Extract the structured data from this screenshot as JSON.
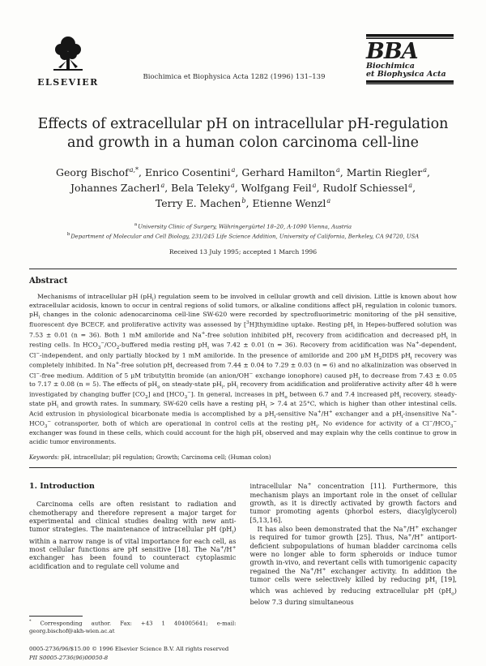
{
  "header": {
    "publisher_name": "ELSEVIER",
    "journal_ref": "Biochimica et Biophysica Acta 1282 (1996) 131–139",
    "bba": {
      "acronym": "BBA",
      "name_line1": "Biochimica",
      "name_line2": "et Biophysica Acta"
    }
  },
  "article": {
    "title": "Effects of extracellular pH on intracellular pH-regulation and growth in a human colon carcinoma cell-line",
    "authors": [
      {
        "name": "Georg Bischof",
        "sup": "a,*"
      },
      {
        "name": "Enrico Cosentini",
        "sup": "a"
      },
      {
        "name": "Gerhard Hamilton",
        "sup": "a"
      },
      {
        "name": "Martin Riegler",
        "sup": "a"
      },
      {
        "name": "Johannes Zacherl",
        "sup": "a"
      },
      {
        "name": "Bela Teleky",
        "sup": "a"
      },
      {
        "name": "Wolfgang Feil",
        "sup": "a"
      },
      {
        "name": "Rudolf Schiessel",
        "sup": "a"
      },
      {
        "name": "Terry E. Machen",
        "sup": "b"
      },
      {
        "name": "Etienne Wenzl",
        "sup": "a"
      }
    ],
    "affiliations": [
      {
        "sup": "a",
        "text": "University Clinic of Surgery, Währingergürtel 18–20, A-1090 Vienna, Austria"
      },
      {
        "sup": "b",
        "text": "Department of Molecular and Cell Biology, 231/245 Life Science Addition, University of California, Berkeley, CA 94720, USA"
      }
    ],
    "received": "Received 13 July 1995; accepted 1 March 1996"
  },
  "abstract": {
    "heading": "Abstract",
    "text_html": "Mechanisms of intracellular pH (pH<sub>i</sub>) regulation seem to be involved in cellular growth and cell division. Little is known about how extracellular acidosis, known to occur in central regions of solid tumors, or alkaline conditions affect pH<sub>i</sub> regulation in colonic tumors. pH<sub>i</sub> changes in the colonic adenocarcinoma cell-line SW-620 were recorded by spectrofluorimetric monitoring of the pH sensitive, fluorescent dye BCECF, and proliferative activity was assessed by [<sup>3</sup>H]thymidine uptake. Resting pH<sub>i</sub> in Hepes-buffered solution was 7.53 ± 0.01 (n = 36). Both 1 mM amiloride and Na<sup>+</sup>-free solution inhibited pH<sub>i</sub> recovery from acidification and decreased pH<sub>i</sub> in resting cells. In HCO<sub>3</sub><sup>−</sup>/CO<sub>2</sub>-buffered media resting pH<sub>i</sub> was 7.42 ± 0.01 (n = 36). Recovery from acidification was Na<sup>+</sup>-dependent, Cl<sup>−</sup>-independent, and only partially blocked by 1 mM amiloride. In the presence of amiloride and 200 μM H<sub>2</sub>DIDS pH<sub>i</sub> recovery was completely inhibited. In Na<sup>+</sup>-free solution pH<sub>i</sub> decreased from 7.44 ± 0.04 to 7.29 ± 0.03 (n = 6) and no alkalinization was observed in Cl<sup>−</sup>-free medium. Addition of 5 μM tributyltin bromide (an anion/OH<sup>−</sup> exchange ionophore) caused pH<sub>i</sub> to decrease from 7.43 ± 0.05 to 7.17 ± 0.08 (n = 5). The effects of pH<sub>o</sub> on steady-state pH<sub>i</sub>, pH<sub>i</sub> recovery from acidification and proliferative activity after 48 h were investigated by changing buffer [CO<sub>2</sub>] and [HCO<sub>3</sub><sup>−</sup>]. In general, increases in pH<sub>o</sub> between 6.7 and 7.4 increased pH<sub>i</sub> recovery, steady-state pH<sub>i</sub> and growth rates. In summary, SW-620 cells have a resting pH<sub>i</sub> &gt; 7.4 at 25°C, which is higher than other intestinal cells. Acid extrusion in physiological bicarbonate media is accomplished by a pH<sub>i</sub>-sensitive Na<sup>+</sup>/H<sup>+</sup> exchanger and a pH<sub>i</sub>-insensitive Na<sup>+</sup>-HCO<sub>3</sub><sup>−</sup> cotransporter, both of which are operational in control cells at the resting pH<sub>i</sub>. No evidence for activity of a Cl<sup>−</sup>/HCO<sub>3</sub><sup>−</sup> exchanger was found in these cells, which could account for the high pH<sub>i</sub> observed and may explain why the cells continue to grow in acidic tumor environments.",
    "keywords_label": "Keywords:",
    "keywords": "pH, intracellular; pH regulation; Growth; Carcinoma cell; (Human colon)"
  },
  "introduction": {
    "heading": "1. Introduction",
    "left_p1_html": "Carcinoma cells are often resistant to radiation and chemotherapy and therefore represent a major target for experimental and clinical studies dealing with new anti-tumor strategies. The maintenance of intracellular pH (pH<sub>i</sub>) within a narrow range is of vital importance for each cell, as most cellular functions are pH sensitive [18]. The Na<sup>+</sup>/H<sup>+</sup> exchanger has been found to counteract cytoplasmic acidification and to regulate cell volume and",
    "right_p1_html": "intracellular Na<sup>+</sup> concentration [11]. Furthermore, this mechanism plays an important role in the onset of cellular growth, as it is directly activated by growth factors and tumor promoting agents (phorbol esters, diacylglycerol) [5,13,16].",
    "right_p2_html": "It has also been demonstrated that the Na<sup>+</sup>/H<sup>+</sup> exchanger is required for tumor growth [25]. Thus, Na<sup>+</sup>/H<sup>+</sup> antiport-deficient subpopulations of human bladder carcinoma cells were no longer able to form spheroids or induce tumor growth in-vivo, and revertant cells with tumorigenic capacity regained the Na<sup>+</sup>/H<sup>+</sup> exchanger activity. In addition the tumor cells were selectively killed by reducing pH<sub>i</sub> [19], which was achieved by reducing extracellular pH (pH<sub>o</sub>) below 7.3 during simultaneous"
  },
  "footnotes": {
    "corresponding_html": "<sup>*</sup> Corresponding author. Fax: +43 1 404005641; e-mail: georg.bischof@akh-wien.ac.at",
    "issn_line": "0005-2736/96/$15.00 © 1996 Elsevier Science B.V. All rights reserved",
    "pii_line": "PII S0005-2736(96)00050-8"
  }
}
